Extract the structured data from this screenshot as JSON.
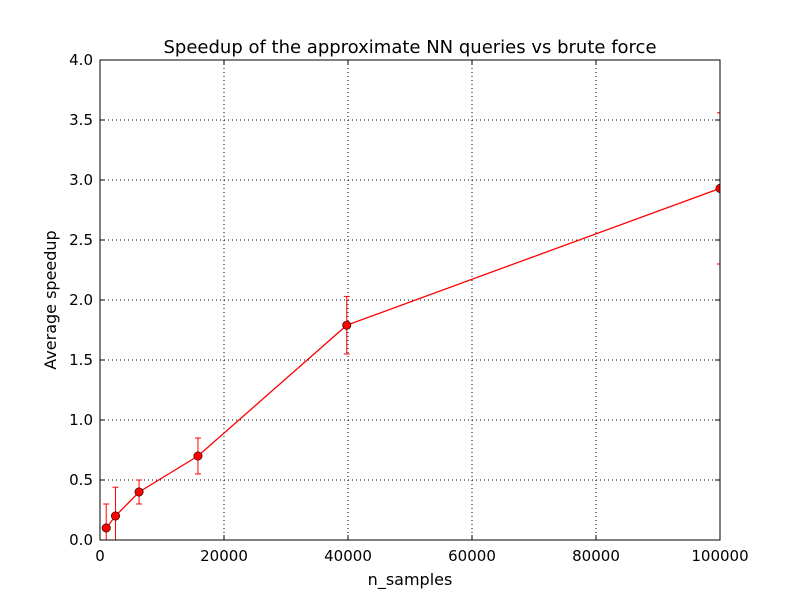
{
  "chart_data": {
    "type": "line",
    "title": "Speedup of the approximate NN queries vs brute force",
    "xlabel": "n_samples",
    "ylabel": "Average speedup",
    "xlim": [
      0,
      100000
    ],
    "ylim": [
      0,
      4.0
    ],
    "xticks": [
      0,
      20000,
      40000,
      60000,
      80000,
      100000
    ],
    "xtick_labels": [
      "0",
      "20000",
      "40000",
      "60000",
      "80000",
      "100000"
    ],
    "yticks": [
      0,
      0.5,
      1.0,
      1.5,
      2.0,
      2.5,
      3.0,
      3.5,
      4.0
    ],
    "ytick_labels": [
      "0.0",
      "0.5",
      "1.0",
      "1.5",
      "2.0",
      "2.5",
      "3.0",
      "3.5",
      "4.0"
    ],
    "grid": true,
    "grid_style": "dotted",
    "series": [
      {
        "color": "#ff0000",
        "marker": "circle",
        "x": [
          1000,
          2500,
          6300,
          15800,
          39800,
          100000
        ],
        "y": [
          0.1,
          0.2,
          0.4,
          0.7,
          1.79,
          2.93
        ],
        "err": [
          0.2,
          0.24,
          0.1,
          0.15,
          0.24,
          0.63
        ]
      }
    ]
  }
}
